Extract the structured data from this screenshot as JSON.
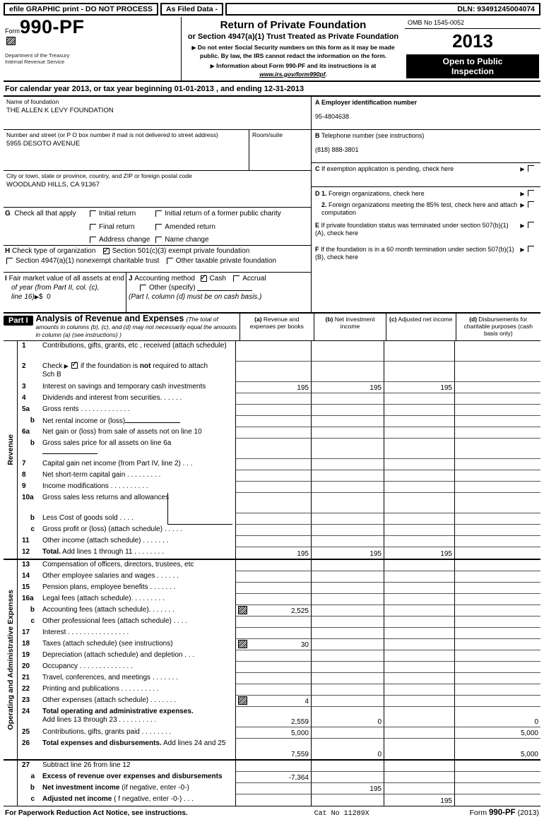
{
  "glyphs": {
    "arrow": "▶",
    "dollar": "$"
  },
  "topbar": {
    "left": "efile GRAPHIC print - DO NOT PROCESS",
    "mid": "As Filed Data -",
    "dln": "DLN: 93491245004074"
  },
  "header": {
    "form_label": "Form",
    "form_number": "990-PF",
    "dept_line1": "Department of the Treasury",
    "dept_line2": "Internal Revenue Service",
    "title": "Return of Private Foundation",
    "subtitle": "or Section 4947(a)(1) Trust Treated as Private Foundation",
    "bullet1": "Do not enter Social Security numbers on this form as it may be made public. By law, the IRS cannot redact the information on the form.",
    "bullet2_pre": "Information about Form 990-PF and its instructions is at ",
    "bullet2_link": "www.irs.gov/form990pf",
    "bullet2_post": ".",
    "omb": "OMB No 1545-0052",
    "year": "2013",
    "open_line1": "Open to Public",
    "open_line2": "Inspection",
    "attachment_icon": "efile-attachment-icon"
  },
  "calendar_line": "For calendar year 2013, or tax year beginning 01-01-2013      , and ending 12-31-2013",
  "entity": {
    "name_label": "Name of foundation",
    "name_value": "THE ALLEN K LEVY FOUNDATION",
    "street_label": "Number and street (or P O  box number if mail is not delivered to street address)",
    "room_label": "Room/suite",
    "street_value": "5955 DESOTO AVENUE",
    "city_label": "City or town, state or province, country, and ZIP or foreign postal code",
    "city_value": "WOODLAND HILLS, CA  91367"
  },
  "right_col": {
    "a_letter": "A",
    "a_label": "Employer identification number",
    "a_value": "95-4804638",
    "b_letter": "B",
    "b_label": "Telephone number (see instructions)",
    "b_value": "(818) 888-3801",
    "c_letter": "C",
    "c_label": "If exemption application is pending, check here",
    "d_letter": "D 1.",
    "d1_label": "Foreign organizations, check here",
    "d2_num": "2.",
    "d2_label": "Foreign organizations meeting the 85% test, check here and attach computation",
    "e_letter": "E",
    "e_label": "If private foundation status was terminated under section 507(b)(1)(A), check here",
    "f_letter": "F",
    "f_label": "If the foundation is in a 60 month termination under section 507(b)(1)(B), check here"
  },
  "g_section": {
    "letter": "G",
    "label": "Check all that apply",
    "col1": [
      {
        "label": "Initial return",
        "checked": false
      },
      {
        "label": "Final return",
        "checked": false
      },
      {
        "label": "Address change",
        "checked": false
      }
    ],
    "col2": [
      {
        "label": "Initial return of a former public charity",
        "checked": false
      },
      {
        "label": "Amended return",
        "checked": false
      },
      {
        "label": "Name change",
        "checked": false
      }
    ]
  },
  "h_section": {
    "letter": "H",
    "label": "Check type of organization",
    "opt1": "Section 501(c)(3) exempt private foundation",
    "opt1_checked": true,
    "opt2": "Section 4947(a)(1) nonexempt charitable trust",
    "opt2_checked": false,
    "opt3": "Other taxable private foundation",
    "opt3_checked": false
  },
  "i_section": {
    "letter": "I",
    "line1": "Fair market value of all assets at end",
    "line2": "of year (from Part II, col. (c),",
    "line3": "line 16)",
    "value": "0"
  },
  "j_section": {
    "letter": "J",
    "label": "Accounting method",
    "cash": "Cash",
    "cash_checked": true,
    "accrual": "Accrual",
    "accrual_checked": false,
    "other": "Other (specify)",
    "other_checked": false,
    "note": "(Part I, column (d) must be on cash basis.)"
  },
  "part1": {
    "badge": "Part I",
    "title": "Analysis of Revenue and Expenses",
    "note": "(The total of amounts in columns (b), (c), and (d) may not necessarily equal the amounts in column (a) (see instructions) )",
    "col_a_tag": "(a)",
    "col_a": "Revenue and expenses per books",
    "col_b_tag": "(b)",
    "col_b": "Net investment income",
    "col_c_tag": "(c)",
    "col_c": "Adjusted net income",
    "col_d_tag": "(d)",
    "col_d": "Disbursements for charitable purposes (cash basis only)",
    "side_revenue": "Revenue",
    "side_expenses": "Operating and Administrative Expenses",
    "check2": {
      "pre": "Check",
      "post1": "if the foundation is ",
      "bold": "not",
      "post2": " required to attach",
      "line2": "Sch  B"
    },
    "rows": [
      {
        "group": "rev",
        "num": "1",
        "label": "Contributions, gifts, grants, etc , received (attach schedule)",
        "tall": true
      },
      {
        "group": "rev",
        "num": "2",
        "special": "check2",
        "tall": true
      },
      {
        "group": "rev",
        "num": "3",
        "label": "Interest on savings and temporary cash investments",
        "a": "195",
        "b": "195",
        "c": "195"
      },
      {
        "group": "rev",
        "num": "4",
        "label": "Dividends and interest from securities.   .   .   .   .   ."
      },
      {
        "group": "rev",
        "num": "5a",
        "label": "Gross rents   .   .   .   .   .   .   .   .   .   .   .   .   ."
      },
      {
        "group": "rev",
        "num": "b",
        "sub": true,
        "label": "Net rental income or (loss)",
        "wline": true
      },
      {
        "group": "rev",
        "num": "6a",
        "label": "Net gain or (loss) from sale of assets not on line 10"
      },
      {
        "group": "rev",
        "num": "b",
        "sub": true,
        "label": "Gross sales price for all assets on line 6a",
        "tall": true,
        "wline2": true
      },
      {
        "group": "rev",
        "num": "7",
        "label": "Capital gain net income (from Part IV, line 2)  .   .   ."
      },
      {
        "group": "rev",
        "num": "8",
        "label": "Net short-term capital gain   .   .   .   .   .   .   .   .   ."
      },
      {
        "group": "rev",
        "num": "9",
        "label": "Income modifications   .   .   .   .   .   .   .   .   .   ."
      },
      {
        "group": "rev",
        "num": "10a",
        "label": "Gross sales less returns and allowances",
        "tall": true,
        "subbox": true
      },
      {
        "group": "rev",
        "num": "b",
        "sub": true,
        "label": "Less  Cost of goods sold   .   .   .   .",
        "subbox": true
      },
      {
        "group": "rev",
        "num": "c",
        "sub": true,
        "label": "Gross profit or (loss) (attach schedule)   .   .   .   .   ."
      },
      {
        "group": "rev",
        "num": "11",
        "label": "Other income (attach schedule)    .   .   .   .   .   .   ."
      },
      {
        "group": "rev",
        "num": "12",
        "bold": "Total.",
        "label": " Add lines 1 through 11    .   .   .   .   .   .   .   .",
        "a": "195",
        "b": "195",
        "c": "195"
      },
      {
        "group": "exp",
        "num": "13",
        "label": "Compensation of officers, directors, trustees, etc"
      },
      {
        "group": "exp",
        "num": "14",
        "label": "Other employee salaries and wages    .   .   .   .   .   ."
      },
      {
        "group": "exp",
        "num": "15",
        "label": "Pension plans, employee benefits   .   .   .   .   .   .   ."
      },
      {
        "group": "exp",
        "num": "16a",
        "label": "Legal fees (attach schedule).   .   .   .   .   .   .   .   ."
      },
      {
        "group": "exp",
        "num": "b",
        "sub": true,
        "label": "Accounting fees (attach schedule).   .   .   .   .   .   .",
        "icon": true,
        "a": "2,525"
      },
      {
        "group": "exp",
        "num": "c",
        "sub": true,
        "label": "Other professional fees (attach schedule)    .   .   .   ."
      },
      {
        "group": "exp",
        "num": "17",
        "label": "Interest    .   .   .   .   .   .   .   .   .   .   .   .   .   .   .   ."
      },
      {
        "group": "exp",
        "num": "18",
        "label": "Taxes (attach schedule) (see instructions)",
        "icon": true,
        "a": "30"
      },
      {
        "group": "exp",
        "num": "19",
        "label": "Depreciation (attach schedule) and depletion   .   .   ."
      },
      {
        "group": "exp",
        "num": "20",
        "label": "Occupancy    .   .   .   .   .   .   .   .   .   .   .   .   .   ."
      },
      {
        "group": "exp",
        "num": "21",
        "label": "Travel, conferences, and meetings .   .   .   .   .   .   ."
      },
      {
        "group": "exp",
        "num": "22",
        "label": "Printing and publications .   .   .   .   .   .   .   .   .   ."
      },
      {
        "group": "exp",
        "num": "23",
        "label": "Other expenses (attach schedule) .   .   .   .   .   .   .",
        "icon": true,
        "a": "4"
      },
      {
        "group": "exp",
        "num": "24",
        "bold": "Total operating and administrative expenses.",
        "label2": "Add lines 13 through 23   .   .   .   .   .   .   .   .   .   .",
        "tall": true,
        "a": "2,559",
        "b": "0",
        "d": "0"
      },
      {
        "group": "exp",
        "num": "25",
        "label": "Contributions, gifts, grants paid .   .   .   .   .   .   .   .",
        "a": "5,000",
        "d": "5,000"
      },
      {
        "group": "exp",
        "num": "26",
        "bold": "Total expenses and disbursements.",
        "label": " Add lines 24 and 25",
        "tall": true,
        "a": "7,559",
        "b": "0",
        "d": "5,000"
      },
      {
        "group": "bot",
        "num": "27",
        "label": "Subtract line 26 from line 12"
      },
      {
        "group": "bot",
        "num": "a",
        "sub": true,
        "bold": "Excess of revenue over expenses and disbursements",
        "a": "-7,364"
      },
      {
        "group": "bot",
        "num": "b",
        "sub": true,
        "bold": "Net investment income",
        "label": " (if negative, enter -0-)",
        "b": "195"
      },
      {
        "group": "bot",
        "num": "c",
        "sub": true,
        "bold": "Adjusted net income",
        "label": " ( f negative, enter -0-)    .   .   .",
        "c": "195"
      }
    ]
  },
  "footer": {
    "notice": "For Paperwork Reduction Act Notice, see instructions.",
    "cat": "Cat No 11289X",
    "form_pre": "Form ",
    "form_bold": "990-PF",
    "form_post": " (2013)"
  }
}
